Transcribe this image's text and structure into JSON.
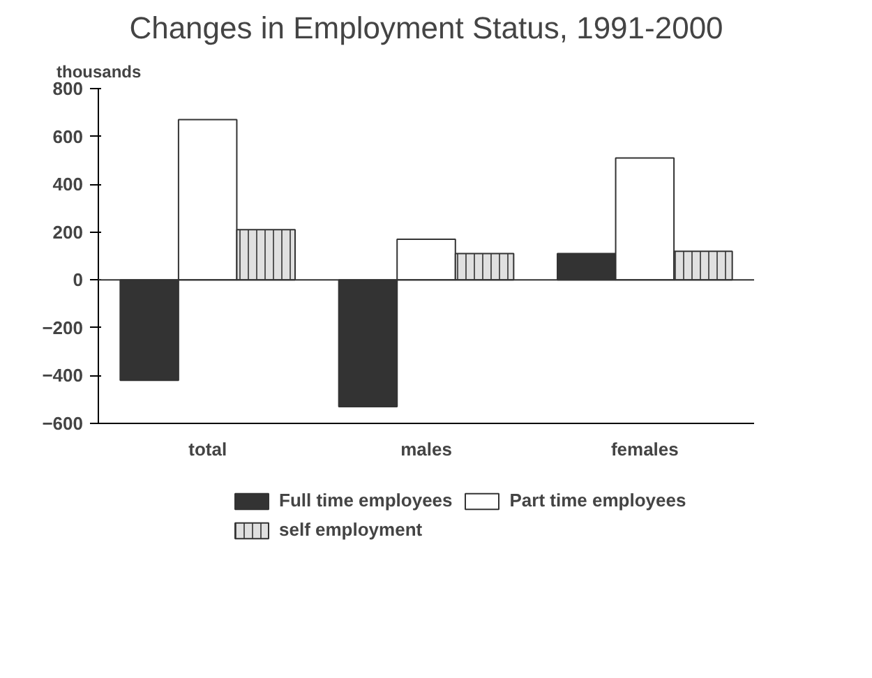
{
  "chart_data": {
    "type": "bar",
    "title": "Changes in Employment Status, 1991-2000",
    "ylabel": "thousands",
    "categories": [
      "total",
      "males",
      "females"
    ],
    "series": [
      {
        "name": "Full time employees",
        "color": "#333333",
        "values": [
          -420,
          -530,
          110
        ]
      },
      {
        "name": "Part time employees",
        "color": "#ffffff",
        "values": [
          670,
          170,
          510
        ]
      },
      {
        "name": "self employment",
        "color": "#e0e0e0",
        "values": [
          210,
          110,
          120
        ]
      }
    ],
    "ylim": [
      -600,
      800
    ],
    "yticks": [
      -600,
      -400,
      -200,
      0,
      200,
      400,
      600,
      800
    ],
    "ref_lines": [
      {
        "axis": "y",
        "value": 0
      }
    ],
    "grid": false,
    "legend": "bottom"
  }
}
